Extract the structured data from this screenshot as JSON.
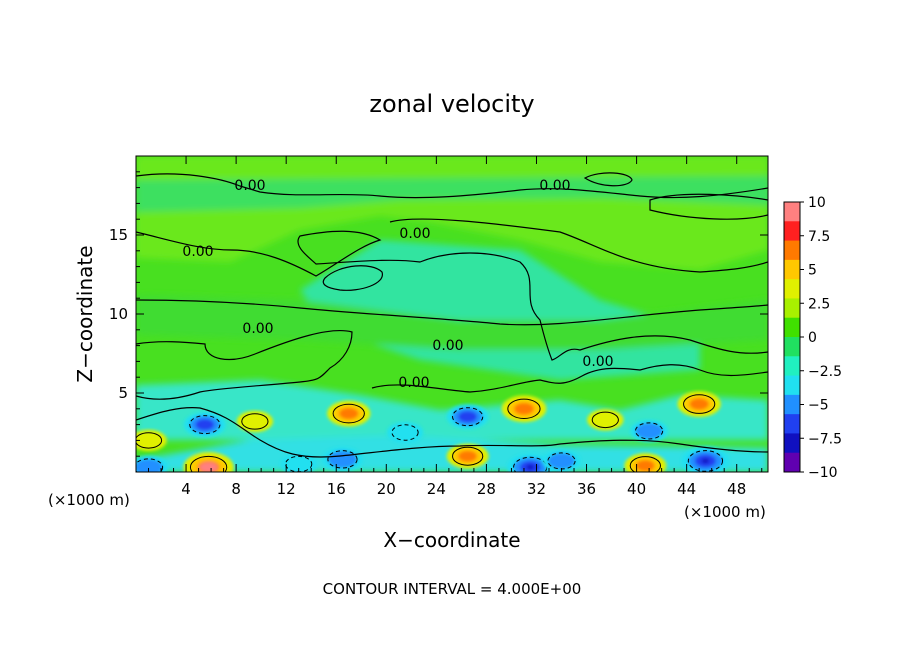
{
  "chart_data": {
    "type": "heatmap",
    "title": "zonal velocity",
    "xlabel": "X−coordinate",
    "ylabel": "Z−coordinate",
    "x_unit_left": "(×1000 m)",
    "x_unit_right": "(×1000 m)",
    "footer": "CONTOUR INTERVAL = 4.000E+00",
    "xlim": [
      0,
      50.5
    ],
    "ylim": [
      0,
      20
    ],
    "x_ticks": [
      4,
      8,
      12,
      16,
      20,
      24,
      28,
      32,
      36,
      40,
      44,
      48
    ],
    "y_ticks": [
      5,
      10,
      15
    ],
    "colorbar": {
      "min": -10,
      "max": 10,
      "tick_labels": [
        "10",
        "7.5",
        "5",
        "2.5",
        "0",
        "−2.5",
        "−5",
        "−7.5",
        "−10"
      ],
      "tick_values": [
        10,
        7.5,
        5,
        2.5,
        0,
        -2.5,
        -5,
        -7.5,
        -10
      ],
      "colors": [
        "#ff8080",
        "#ff2020",
        "#ff7a00",
        "#ffc800",
        "#e0f000",
        "#a8f000",
        "#40e000",
        "#20e060",
        "#20f0c0",
        "#20e0f0",
        "#2090ff",
        "#2040f0",
        "#1010c0",
        "#6000b0"
      ]
    },
    "contour_labels": [
      "0.00",
      "0.00",
      "0.00",
      "0.00",
      "0.00",
      "0.00",
      "0.00",
      "0.00"
    ],
    "features": [
      {
        "x": 5.8,
        "z": 0.3,
        "value": 8,
        "sign": "positive"
      },
      {
        "x": 17,
        "z": 3.7,
        "value": 5.5,
        "sign": "positive"
      },
      {
        "x": 31,
        "z": 4,
        "value": 6,
        "sign": "positive"
      },
      {
        "x": 45,
        "z": 4.3,
        "value": 5.5,
        "sign": "positive"
      },
      {
        "x": 9.5,
        "z": 3.2,
        "value": 3,
        "sign": "positive"
      },
      {
        "x": 37.5,
        "z": 3.3,
        "value": 3,
        "sign": "positive"
      },
      {
        "x": 26.5,
        "z": 1,
        "value": 5,
        "sign": "positive"
      },
      {
        "x": 40.7,
        "z": 0.4,
        "value": 5,
        "sign": "positive"
      },
      {
        "x": 1,
        "z": 2,
        "value": 3,
        "sign": "positive"
      },
      {
        "x": 5.5,
        "z": 3,
        "value": -5,
        "sign": "negative"
      },
      {
        "x": 16.5,
        "z": 0.8,
        "value": -4.5,
        "sign": "negative"
      },
      {
        "x": 26.5,
        "z": 3.5,
        "value": -5,
        "sign": "negative"
      },
      {
        "x": 31.5,
        "z": 0.3,
        "value": -6.5,
        "sign": "negative"
      },
      {
        "x": 45.5,
        "z": 0.7,
        "value": -7,
        "sign": "negative"
      },
      {
        "x": 1,
        "z": 0.3,
        "value": -4,
        "sign": "negative"
      },
      {
        "x": 34,
        "z": 0.7,
        "value": -3.5,
        "sign": "negative"
      },
      {
        "x": 41,
        "z": 2.6,
        "value": -3.5,
        "sign": "negative"
      },
      {
        "x": 21.5,
        "z": 2.5,
        "value": -3,
        "sign": "negative"
      },
      {
        "x": 13,
        "z": 0.5,
        "value": -3,
        "sign": "negative"
      }
    ]
  }
}
